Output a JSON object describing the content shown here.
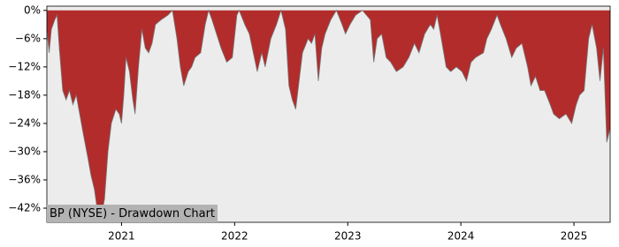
{
  "chart_data": {
    "type": "area",
    "title": "BP (NYSE) - Drawdown Chart",
    "x": [
      2020.34,
      2020.36,
      2020.38,
      2020.41,
      2020.43,
      2020.45,
      2020.48,
      2020.51,
      2020.54,
      2020.57,
      2020.6,
      2020.63,
      2020.66,
      2020.7,
      2020.73,
      2020.76,
      2020.79,
      2020.82,
      2020.85,
      2020.88,
      2020.91,
      2020.95,
      2020.98,
      2021.0,
      2021.02,
      2021.04,
      2021.07,
      2021.1,
      2021.12,
      2021.15,
      2021.18,
      2021.21,
      2021.24,
      2021.27,
      2021.3,
      2021.35,
      2021.41,
      2021.45,
      2021.49,
      2021.52,
      2021.55,
      2021.59,
      2021.62,
      2021.65,
      2021.7,
      2021.74,
      2021.77,
      2021.8,
      2021.84,
      2021.88,
      2021.93,
      2021.98,
      2022.02,
      2022.04,
      2022.09,
      2022.13,
      2022.2,
      2022.24,
      2022.27,
      2022.32,
      2022.37,
      2022.41,
      2022.45,
      2022.48,
      2022.51,
      2022.54,
      2022.57,
      2022.6,
      2022.65,
      2022.68,
      2022.71,
      2022.74,
      2022.77,
      2022.8,
      2022.85,
      2022.9,
      2022.95,
      2022.98,
      2023.02,
      2023.07,
      2023.13,
      2023.2,
      2023.23,
      2023.26,
      2023.3,
      2023.34,
      2023.38,
      2023.43,
      2023.49,
      2023.54,
      2023.59,
      2023.63,
      2023.68,
      2023.73,
      2023.76,
      2023.79,
      2023.82,
      2023.87,
      2023.91,
      2023.96,
      2024.01,
      2024.05,
      2024.09,
      2024.13,
      2024.2,
      2024.23,
      2024.27,
      2024.32,
      2024.35,
      2024.4,
      2024.45,
      2024.49,
      2024.54,
      2024.59,
      2024.62,
      2024.66,
      2024.7,
      2024.74,
      2024.79,
      2024.82,
      2024.87,
      2024.93,
      2024.98,
      2025.02,
      2025.05,
      2025.09,
      2025.13,
      2025.16,
      2025.2,
      2025.23,
      2025.26,
      2025.29,
      2025.32
    ],
    "values": [
      -4,
      -9,
      -4,
      -2,
      -1,
      -8,
      -17,
      -19,
      -17,
      -20,
      -18,
      -22,
      -26,
      -31,
      -35,
      -38,
      -43,
      -44,
      -40,
      -30,
      -24,
      -21,
      -22,
      -24,
      -18,
      -10,
      -13,
      -19,
      -22,
      -12,
      -4,
      -8,
      -9,
      -7,
      -3,
      -2,
      -1,
      0,
      -6,
      -12,
      -16,
      -13,
      -12,
      -10,
      -9,
      -3,
      0,
      -2,
      -5,
      -8,
      -11,
      -10,
      -1,
      0,
      -3,
      -5,
      -13,
      -9,
      -12,
      -6,
      -3,
      0,
      -4,
      -16,
      -19,
      -21,
      -15,
      -9,
      -6,
      -7,
      -5,
      -15,
      -8,
      -5,
      -2,
      0,
      -3,
      -5,
      -3,
      -1,
      0,
      -2,
      -11,
      -6,
      -5,
      -10,
      -11,
      -13,
      -12,
      -10,
      -7,
      -9,
      -5,
      -3,
      -4,
      -1,
      -5,
      -12,
      -13,
      -12,
      -13,
      -15,
      -11,
      -10,
      -9,
      -6,
      -4,
      -1,
      -3,
      -6,
      -10,
      -8,
      -7,
      -12,
      -16,
      -14,
      -17,
      -17,
      -20,
      -22,
      -23,
      -22,
      -24,
      -20,
      -18,
      -17,
      -6,
      -3,
      -8,
      -15,
      -8,
      -28,
      -25
    ],
    "color": "#b22c2c",
    "xlim": [
      2020.34,
      2025.32
    ],
    "xticks": [
      2021,
      2022,
      2023,
      2024,
      2025
    ],
    "ylim": [
      -45,
      0.9
    ],
    "yticks": [
      {
        "value": 0,
        "label": "0%"
      },
      {
        "value": -6,
        "label": "−6%"
      },
      {
        "value": -12,
        "label": "−12%"
      },
      {
        "value": -18,
        "label": "−18%"
      },
      {
        "value": -24,
        "label": "−24%"
      },
      {
        "value": -30,
        "label": "−30%"
      },
      {
        "value": -36,
        "label": "−36%"
      },
      {
        "value": -42,
        "label": "−42%"
      }
    ]
  }
}
